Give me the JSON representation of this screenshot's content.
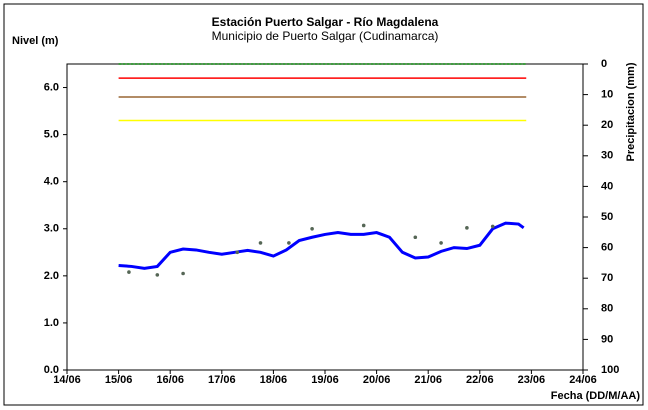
{
  "chart_data": {
    "type": "line",
    "title": "Estación Puerto Salgar - Río Magdalena",
    "subtitle": "Municipio de Puerto Salgar (Cudinamarca)",
    "y_label": "Nivel (m)",
    "y2_label": "Precipitacion (mm)",
    "x_label": "Fecha (DD/M/AA)",
    "xlim": [
      14,
      24
    ],
    "xticks": [
      {
        "value": 14,
        "label": "14/06"
      },
      {
        "value": 15,
        "label": "15/06"
      },
      {
        "value": 16,
        "label": "16/06"
      },
      {
        "value": 17,
        "label": "17/06"
      },
      {
        "value": 18,
        "label": "18/06"
      },
      {
        "value": 19,
        "label": "19/06"
      },
      {
        "value": 20,
        "label": "20/06"
      },
      {
        "value": 21,
        "label": "21/06"
      },
      {
        "value": 22,
        "label": "22/06"
      },
      {
        "value": 23,
        "label": "23/06"
      },
      {
        "value": 24,
        "label": "24/06"
      }
    ],
    "ylim": [
      0,
      6.5
    ],
    "yticks": [
      {
        "value": 0,
        "label": "0.0"
      },
      {
        "value": 1,
        "label": "1.0"
      },
      {
        "value": 2,
        "label": "2.0"
      },
      {
        "value": 3,
        "label": "3.0"
      },
      {
        "value": 4,
        "label": "4.0"
      },
      {
        "value": 5,
        "label": "5.0"
      },
      {
        "value": 6,
        "label": "6.0"
      }
    ],
    "y2lim": [
      100,
      0
    ],
    "y2ticks": [
      0,
      10,
      20,
      30,
      40,
      50,
      60,
      70,
      80,
      90,
      100
    ],
    "series": [
      {
        "type": "line",
        "color": "#008000",
        "dash": true,
        "x": [
          15,
          22.9
        ],
        "values": [
          6.5,
          6.5
        ]
      },
      {
        "type": "line",
        "color": "#ff0000",
        "x": [
          15,
          22.9
        ],
        "values": [
          6.2,
          6.2
        ]
      },
      {
        "type": "line",
        "color": "#996633",
        "x": [
          15,
          22.9
        ],
        "values": [
          5.8,
          5.8
        ]
      },
      {
        "type": "line",
        "color": "#ffff00",
        "x": [
          15,
          22.9
        ],
        "values": [
          5.3,
          5.3
        ]
      },
      {
        "type": "line",
        "color": "#0000ff",
        "width": 3,
        "x": [
          15,
          15.25,
          15.5,
          15.75,
          16,
          16.25,
          16.5,
          16.75,
          17,
          17.25,
          17.5,
          17.75,
          18,
          18.25,
          18.5,
          18.75,
          19,
          19.25,
          19.5,
          19.75,
          20,
          20.25,
          20.5,
          20.75,
          21,
          21.25,
          21.5,
          21.75,
          22,
          22.25,
          22.5,
          22.75,
          22.85
        ],
        "values": [
          2.22,
          2.2,
          2.16,
          2.2,
          2.5,
          2.57,
          2.55,
          2.5,
          2.46,
          2.5,
          2.54,
          2.5,
          2.42,
          2.55,
          2.75,
          2.82,
          2.88,
          2.92,
          2.88,
          2.88,
          2.92,
          2.82,
          2.5,
          2.38,
          2.4,
          2.52,
          2.6,
          2.58,
          2.65,
          3.0,
          3.12,
          3.1,
          3.02
        ]
      },
      {
        "type": "scatter",
        "color": "#556655",
        "x": [
          15.2,
          15.75,
          16.25,
          17.3,
          17.75,
          18.3,
          18.75,
          19.75,
          20.75,
          21.25,
          21.75,
          22.25
        ],
        "values": [
          2.08,
          2.02,
          2.05,
          2.5,
          2.7,
          2.7,
          3.0,
          3.07,
          2.82,
          2.7,
          3.02,
          3.05
        ]
      }
    ]
  }
}
